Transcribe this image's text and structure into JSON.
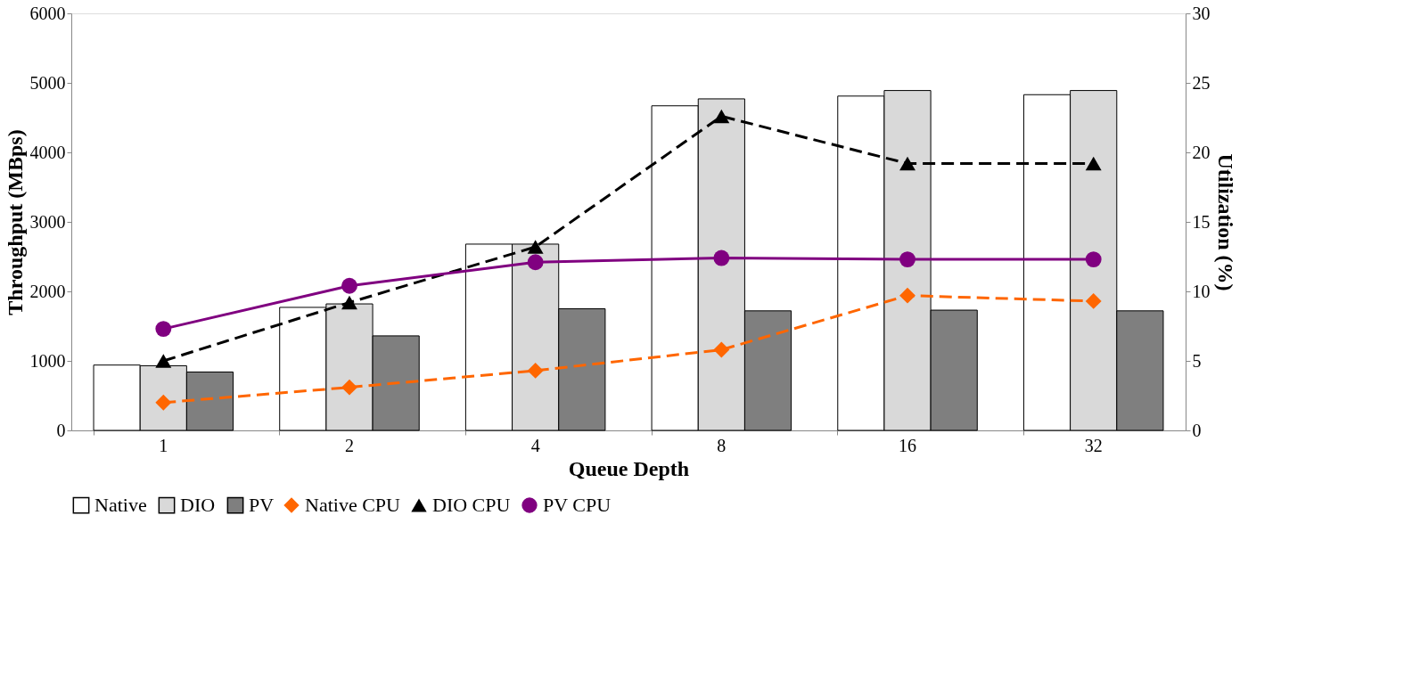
{
  "chart_data": {
    "type": "bar",
    "xlabel": "Queue Depth",
    "ylabel": "Throughput (MBps)",
    "y2label": "Utilization (%)",
    "categories": [
      "1",
      "2",
      "4",
      "8",
      "16",
      "32"
    ],
    "ylim": [
      0,
      6000
    ],
    "yticks": [
      0,
      1000,
      2000,
      3000,
      4000,
      5000,
      6000
    ],
    "y2lim": [
      0,
      30
    ],
    "y2ticks": [
      0,
      5,
      10,
      15,
      20,
      25,
      30
    ],
    "grid": false,
    "legend": "bottom",
    "series": [
      {
        "name": "Native",
        "type": "bar",
        "color": "#ffffff",
        "values": [
          940,
          1770,
          2680,
          4670,
          4810,
          4830
        ]
      },
      {
        "name": "DIO",
        "type": "bar",
        "color": "#d9d9d9",
        "values": [
          930,
          1820,
          2680,
          4770,
          4890,
          4890
        ]
      },
      {
        "name": "PV",
        "type": "bar",
        "color": "#7f7f7f",
        "values": [
          840,
          1360,
          1750,
          1720,
          1730,
          1720
        ]
      },
      {
        "name": "Native CPU",
        "type": "line",
        "axis": "y2",
        "color": "#ff6600",
        "marker": "diamond",
        "line_style": "dashed",
        "values": [
          2.0,
          3.1,
          4.3,
          5.8,
          9.7,
          9.3
        ]
      },
      {
        "name": "DIO CPU",
        "type": "line",
        "axis": "y2",
        "color": "#000000",
        "marker": "triangle",
        "line_style": "dashed",
        "values": [
          5.0,
          9.2,
          13.2,
          22.6,
          19.2,
          19.2
        ]
      },
      {
        "name": "PV CPU",
        "type": "line",
        "axis": "y2",
        "color": "#800080",
        "marker": "circle",
        "line_style": "solid",
        "values": [
          7.3,
          10.4,
          12.1,
          12.4,
          12.3,
          12.3
        ]
      }
    ]
  }
}
